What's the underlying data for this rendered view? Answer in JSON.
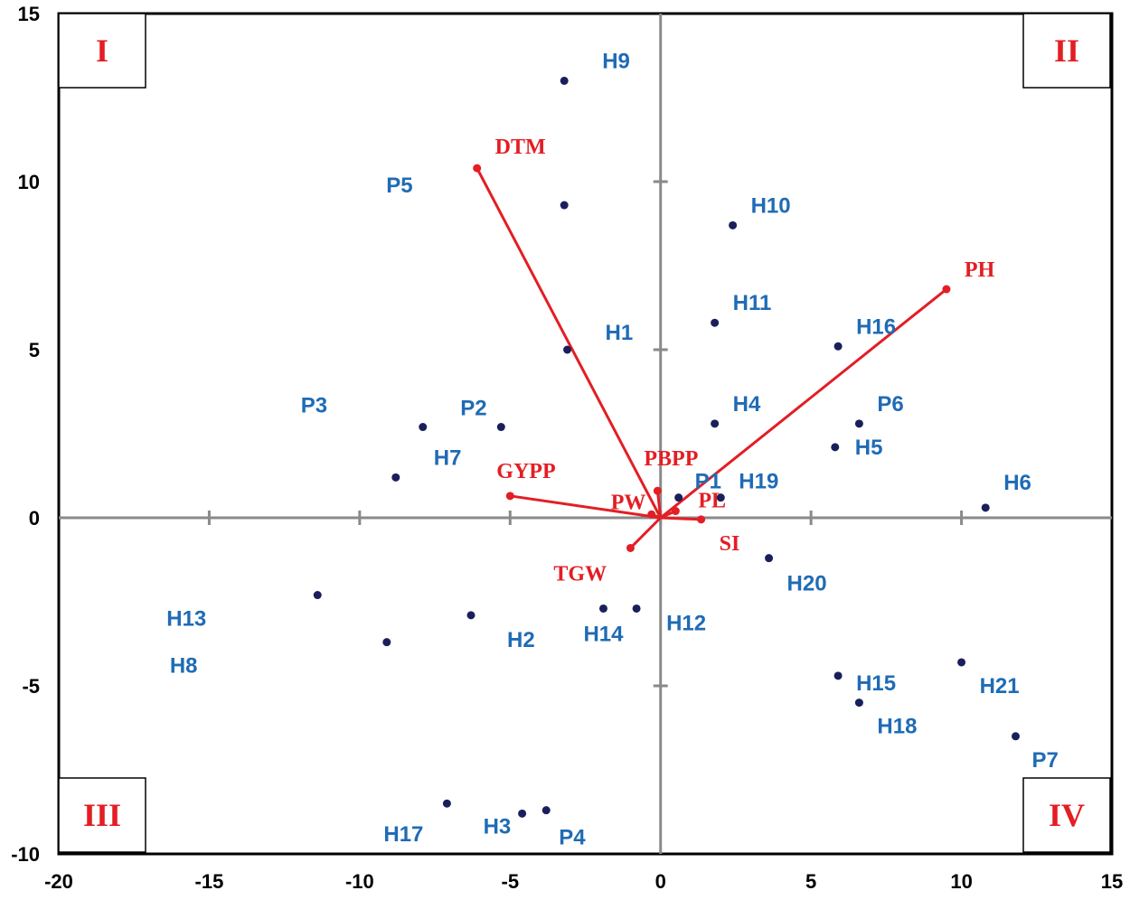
{
  "chart_data": {
    "type": "scatter",
    "xlim": [
      -20,
      15
    ],
    "ylim": [
      -10,
      15
    ],
    "x_ticks": [
      -20,
      -15,
      -10,
      -5,
      0,
      5,
      10,
      15
    ],
    "y_ticks": [
      -10,
      -5,
      0,
      5,
      10,
      15
    ],
    "x_tick_labels": [
      "-20",
      "-15",
      "-10",
      "-5",
      "0",
      "5",
      "10",
      "15"
    ],
    "y_tick_labels": [
      "-10",
      "-5",
      "0",
      "5",
      "10",
      "15"
    ],
    "grid": false,
    "quadrants": [
      {
        "label": "I",
        "position": "top-left"
      },
      {
        "label": "II",
        "position": "top-right"
      },
      {
        "label": "III",
        "position": "bottom-left"
      },
      {
        "label": "IV",
        "position": "bottom-right"
      }
    ],
    "points": [
      {
        "name": "H9",
        "x": -3.2,
        "y": 13.0
      },
      {
        "name": "P5",
        "x": -3.2,
        "y": 9.3
      },
      {
        "name": "H10",
        "x": 2.4,
        "y": 8.7
      },
      {
        "name": "H11",
        "x": 1.8,
        "y": 5.8
      },
      {
        "name": "H1",
        "x": -3.1,
        "y": 5.0
      },
      {
        "name": "H16",
        "x": 5.9,
        "y": 5.1
      },
      {
        "name": "H4",
        "x": 1.8,
        "y": 2.8
      },
      {
        "name": "P6",
        "x": 6.6,
        "y": 2.8
      },
      {
        "name": "H5",
        "x": 5.8,
        "y": 2.1
      },
      {
        "name": "P2",
        "x": -5.3,
        "y": 2.7
      },
      {
        "name": "P3",
        "x": -7.9,
        "y": 2.7
      },
      {
        "name": "H7",
        "x": -8.8,
        "y": 1.2
      },
      {
        "name": "P1",
        "x": 0.6,
        "y": 0.6
      },
      {
        "name": "H19",
        "x": 2.0,
        "y": 0.6
      },
      {
        "name": "H6",
        "x": 10.8,
        "y": 0.3
      },
      {
        "name": "H20",
        "x": 3.6,
        "y": -1.2
      },
      {
        "name": "H12",
        "x": -0.8,
        "y": -2.7
      },
      {
        "name": "H14",
        "x": -1.9,
        "y": -2.7
      },
      {
        "name": "H2",
        "x": -6.3,
        "y": -2.9
      },
      {
        "name": "H13",
        "x": -11.4,
        "y": -2.3
      },
      {
        "name": "H8",
        "x": -9.1,
        "y": -3.7
      },
      {
        "name": "H21",
        "x": 10.0,
        "y": -4.3
      },
      {
        "name": "H15",
        "x": 5.9,
        "y": -4.7
      },
      {
        "name": "H18",
        "x": 6.6,
        "y": -5.5
      },
      {
        "name": "P7",
        "x": 11.8,
        "y": -6.5
      },
      {
        "name": "H17",
        "x": -7.1,
        "y": -8.5
      },
      {
        "name": "H3",
        "x": -4.6,
        "y": -8.8
      },
      {
        "name": "P4",
        "x": -3.8,
        "y": -8.7
      }
    ],
    "vectors": [
      {
        "name": "DTM",
        "x": -6.1,
        "y": 10.4
      },
      {
        "name": "PH",
        "x": 9.5,
        "y": 6.8
      },
      {
        "name": "GYPP",
        "x": -5.0,
        "y": 0.65
      },
      {
        "name": "PW",
        "x": -0.3,
        "y": 0.1
      },
      {
        "name": "PBPP",
        "x": -0.1,
        "y": 0.8
      },
      {
        "name": "PL",
        "x": 0.5,
        "y": 0.2
      },
      {
        "name": "SI",
        "x": 1.35,
        "y": -0.05
      },
      {
        "name": "TGW",
        "x": -1.0,
        "y": -0.9
      }
    ]
  },
  "colors": {
    "point_marker": "#1a1f5c",
    "point_label": "#1f6bb5",
    "vector": "#e31e24",
    "axis_line": "#8a8a8a",
    "frame": "#000000"
  }
}
